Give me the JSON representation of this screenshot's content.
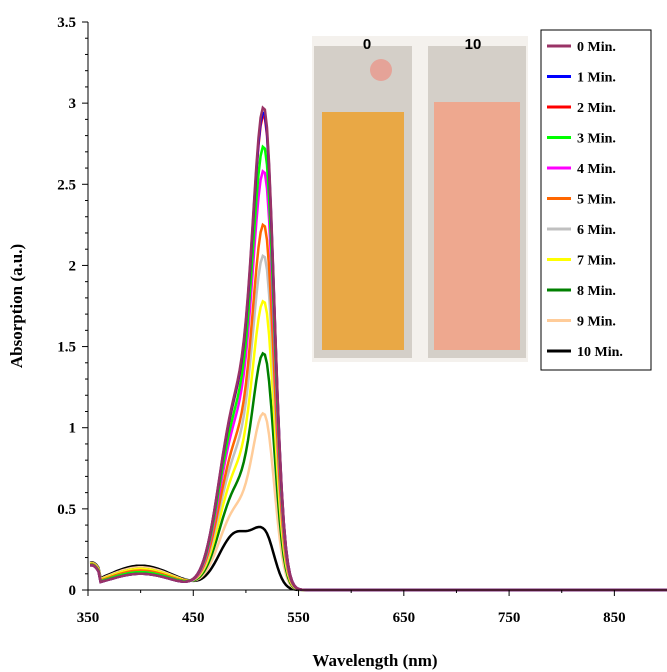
{
  "chart_data": {
    "type": "line",
    "xlabel": "Wavelength (nm)",
    "ylabel": "Absorption (a.u.)",
    "xlim": [
      350,
      900
    ],
    "ylim": [
      0,
      3.5
    ],
    "xticks": [
      350,
      450,
      550,
      650,
      750,
      850
    ],
    "yticks": [
      0,
      0.5,
      1,
      1.5,
      2,
      2.5,
      3,
      3.5
    ],
    "grid": false,
    "legend_position": "top-right",
    "series": [
      {
        "name": "0 Min.",
        "color": "#993366",
        "peak": 2.96,
        "shoulder": 1.1,
        "baseline": 0.1
      },
      {
        "name": "1 Min.",
        "color": "#0000ff",
        "peak": 2.93,
        "shoulder": 1.09,
        "baseline": 0.1
      },
      {
        "name": "2 Min.",
        "color": "#ff0000",
        "peak": 2.91,
        "shoulder": 1.08,
        "baseline": 0.1
      },
      {
        "name": "3 Min.",
        "color": "#00ff00",
        "peak": 2.72,
        "shoulder": 1.01,
        "baseline": 0.11
      },
      {
        "name": "4 Min.",
        "color": "#ff00ff",
        "peak": 2.57,
        "shoulder": 0.95,
        "baseline": 0.11
      },
      {
        "name": "5 Min.",
        "color": "#ff6600",
        "peak": 2.24,
        "shoulder": 0.84,
        "baseline": 0.12
      },
      {
        "name": "6 Min.",
        "color": "#c0c0c0",
        "peak": 2.05,
        "shoulder": 0.77,
        "baseline": 0.12
      },
      {
        "name": "7 Min.",
        "color": "#ffff00",
        "peak": 1.77,
        "shoulder": 0.68,
        "baseline": 0.13
      },
      {
        "name": "8 Min.",
        "color": "#008000",
        "peak": 1.45,
        "shoulder": 0.58,
        "baseline": 0.13
      },
      {
        "name": "9 Min.",
        "color": "#ffcc99",
        "peak": 1.08,
        "shoulder": 0.47,
        "baseline": 0.14
      },
      {
        "name": "10 Min.",
        "color": "#000000",
        "peak": 0.37,
        "shoulder": 0.34,
        "baseline": 0.15
      }
    ],
    "peak_wavelength": 518,
    "inset": {
      "labels": [
        "0",
        "10"
      ],
      "colors": [
        "#e9a845",
        "#eea88f"
      ]
    }
  }
}
